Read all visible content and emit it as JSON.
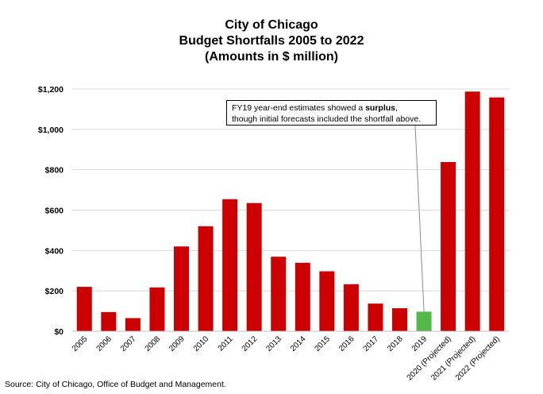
{
  "chart_data": {
    "type": "bar",
    "title_lines": [
      "City of Chicago",
      "Budget Shortfalls 2005 to 2022",
      "(Amounts in $ million)"
    ],
    "categories": [
      "2005",
      "2006",
      "2007",
      "2008",
      "2009",
      "2010",
      "2011",
      "2012",
      "2013",
      "2014",
      "2015",
      "2016",
      "2017",
      "2018",
      "2019",
      "2020 (Projected)",
      "2021 (Projected)",
      "2022 (Projected)"
    ],
    "values": [
      220,
      95,
      65,
      217,
      420,
      520,
      654,
      635,
      369,
      339,
      297,
      233,
      137,
      114,
      97,
      838,
      1187,
      1158
    ],
    "highlight_index": 14,
    "bar_color": "#cc0000",
    "highlight_color": "#53b848",
    "ylim": [
      0,
      1200
    ],
    "yticks": [
      0,
      200,
      400,
      600,
      800,
      1000,
      1200
    ],
    "ytick_labels": [
      "$0",
      "$200",
      "$400",
      "$600",
      "$800",
      "$1,000",
      "$1,200"
    ],
    "grid": true,
    "annotation": {
      "line1_before": "FY19 year-end estimates showed a ",
      "line1_bold": "surplus",
      "line1_after": ",",
      "line2": "though initial forecasts included the shortfall above."
    }
  },
  "source": "Source: City of Chicago, Office of Budget and Management."
}
